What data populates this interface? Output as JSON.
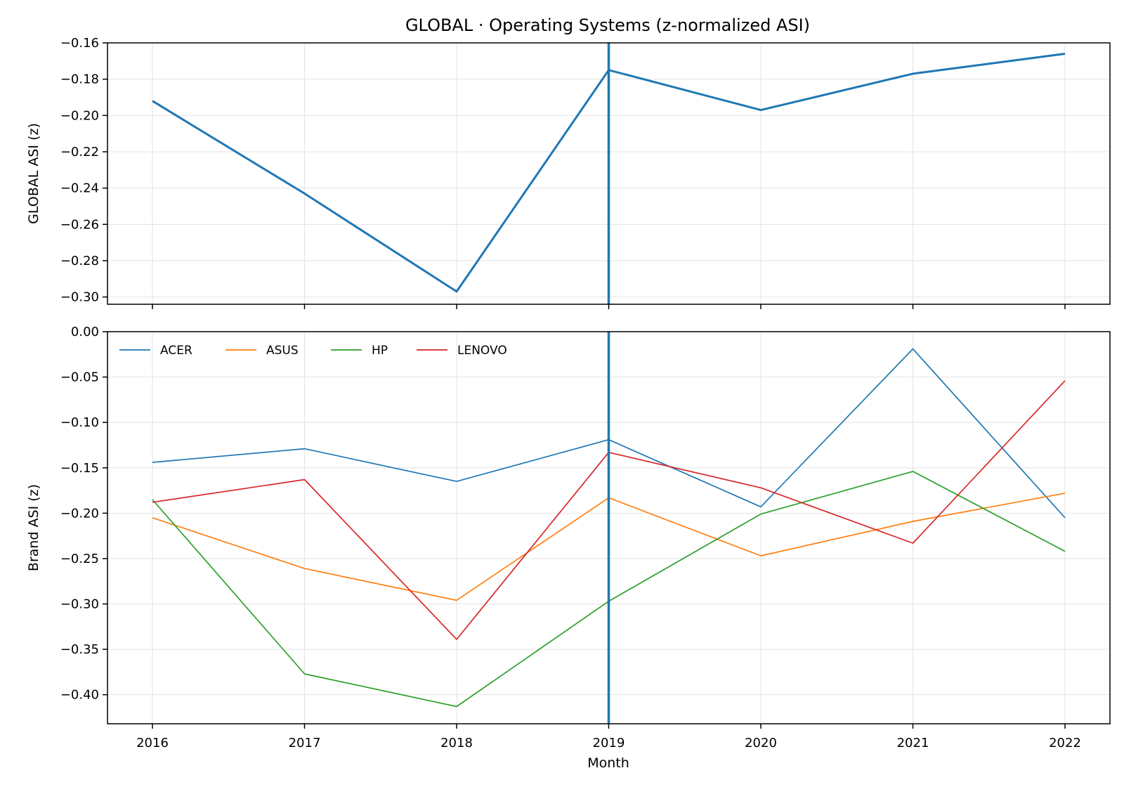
{
  "chart_data": [
    {
      "type": "line",
      "title": "GLOBAL · Operating Systems (z-normalized ASI)",
      "xlabel": "",
      "ylabel": "GLOBAL ASI (z)",
      "x": [
        "2016",
        "2017",
        "2018",
        "2019",
        "2020",
        "2021",
        "2022"
      ],
      "x_tick_labels": [
        "−0.16",
        "−0.18",
        "−0.20",
        "−0.22",
        "−0.24",
        "−0.26",
        "−0.28",
        "−0.30"
      ],
      "y_ticks": [
        -0.16,
        -0.18,
        -0.2,
        -0.22,
        -0.24,
        -0.26,
        -0.28,
        -0.3
      ],
      "ylim": [
        -0.304,
        -0.16
      ],
      "grid": true,
      "vline_x": "2019",
      "series": [
        {
          "values": [
            -0.192,
            -0.243,
            -0.297,
            -0.175,
            -0.197,
            -0.177,
            -0.166
          ],
          "color": "#1f77b4"
        }
      ]
    },
    {
      "type": "line",
      "title": "",
      "xlabel": "Month",
      "ylabel": "Brand ASI (z)",
      "x": [
        "2016",
        "2017",
        "2018",
        "2019",
        "2020",
        "2021",
        "2022"
      ],
      "y_ticks": [
        0.0,
        -0.05,
        -0.1,
        -0.15,
        -0.2,
        -0.25,
        -0.3,
        -0.35,
        -0.4
      ],
      "y_tick_labels": [
        "0.00",
        "−0.05",
        "−0.10",
        "−0.15",
        "−0.20",
        "−0.25",
        "−0.30",
        "−0.35",
        "−0.40"
      ],
      "ylim": [
        -0.432,
        0.0
      ],
      "grid": true,
      "legend_position": "top-left",
      "vline_x": "2019",
      "series": [
        {
          "name": "ACER",
          "values": [
            -0.144,
            -0.129,
            -0.165,
            -0.119,
            -0.193,
            -0.019,
            -0.205
          ],
          "color": "#1f77b4"
        },
        {
          "name": "ASUS",
          "values": [
            -0.205,
            -0.261,
            -0.296,
            -0.183,
            -0.247,
            -0.209,
            -0.178
          ],
          "color": "#ff7f0e"
        },
        {
          "name": "HP",
          "values": [
            -0.185,
            -0.377,
            -0.413,
            -0.297,
            -0.201,
            -0.154,
            -0.242
          ],
          "color": "#2ca02c"
        },
        {
          "name": "LENOVO",
          "values": [
            -0.188,
            -0.163,
            -0.339,
            -0.133,
            -0.172,
            -0.233,
            -0.054
          ],
          "color": "#d62728"
        }
      ]
    }
  ]
}
